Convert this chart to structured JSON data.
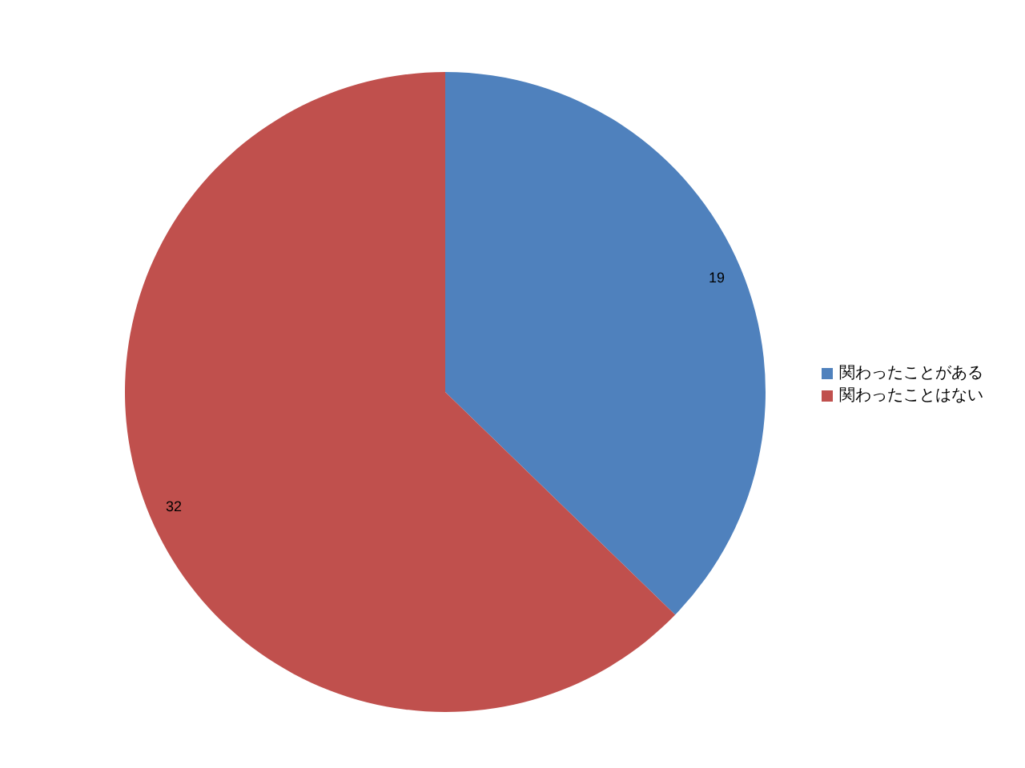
{
  "chart_data": {
    "type": "pie",
    "categories": [
      "関わったことがある",
      "関わったことはない"
    ],
    "values": [
      19,
      32
    ],
    "colors": [
      "#4f81bd",
      "#c0504d"
    ],
    "data_labels": true,
    "legend": "right"
  }
}
